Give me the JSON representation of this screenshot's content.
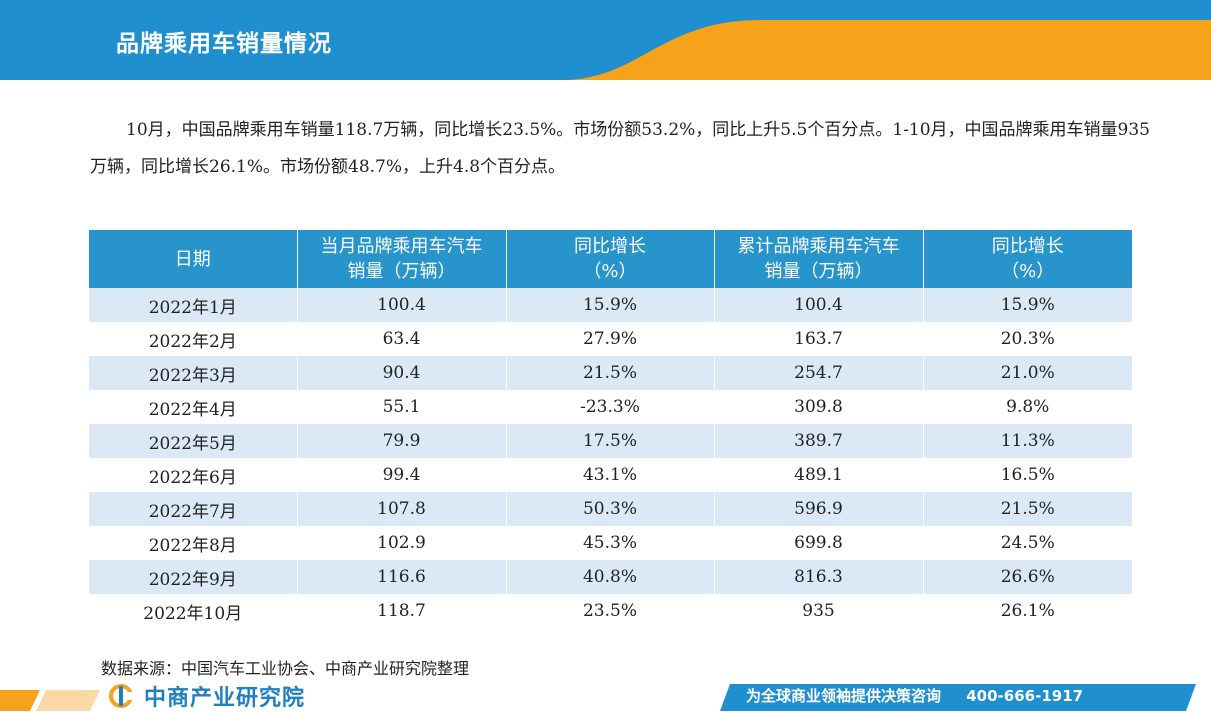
{
  "header": {
    "title": "品牌乘用车销量情况"
  },
  "intro": {
    "text": "10月，中国品牌乘用车销量118.7万辆，同比增长23.5%。市场份额53.2%，同比上升5.5个百分点。1-10月，中国品牌乘用车销量935万辆，同比增长26.1%。市场份额48.7%，上升4.8个百分点。"
  },
  "table": {
    "headers": [
      {
        "line1": "日期",
        "line2": ""
      },
      {
        "line1": "当月品牌乘用车汽车",
        "line2": "销量（万辆）"
      },
      {
        "line1": "同比增长",
        "line2": "（%）"
      },
      {
        "line1": "累计品牌乘用车汽车",
        "line2": "销量（万辆）"
      },
      {
        "line1": "同比增长",
        "line2": "（%）"
      }
    ],
    "rows": [
      [
        "2022年1月",
        "100.4",
        "15.9%",
        "100.4",
        "15.9%"
      ],
      [
        "2022年2月",
        "63.4",
        "27.9%",
        "163.7",
        "20.3%"
      ],
      [
        "2022年3月",
        "90.4",
        "21.5%",
        "254.7",
        "21.0%"
      ],
      [
        "2022年4月",
        "55.1",
        "-23.3%",
        "309.8",
        "9.8%"
      ],
      [
        "2022年5月",
        "79.9",
        "17.5%",
        "389.7",
        "11.3%"
      ],
      [
        "2022年6月",
        "99.4",
        "43.1%",
        "489.1",
        "16.5%"
      ],
      [
        "2022年7月",
        "107.8",
        "50.3%",
        "596.9",
        "21.5%"
      ],
      [
        "2022年8月",
        "102.9",
        "45.3%",
        "699.8",
        "24.5%"
      ],
      [
        "2022年9月",
        "116.6",
        "40.8%",
        "816.3",
        "26.6%"
      ],
      [
        "2022年10月",
        "118.7",
        "23.5%",
        "935",
        "26.1%"
      ]
    ]
  },
  "source": {
    "text": "数据来源：中国汽车工业协会、中商产业研究院整理"
  },
  "footer": {
    "brand_name": "中商产业研究院",
    "slogan": "为全球商业领袖提供决策咨询",
    "phone": "400-666-1917",
    "colors": {
      "blue": "#1f8fd0",
      "orange": "#f7a21b"
    }
  }
}
